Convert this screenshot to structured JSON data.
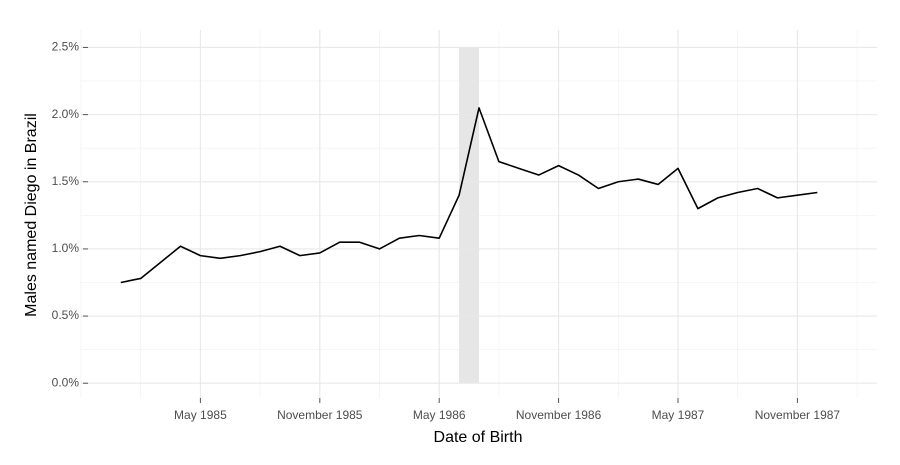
{
  "chart_data": {
    "type": "line",
    "xlabel": "Date of Birth",
    "ylabel": "Males named Diego in Brazil",
    "x": [
      "1985-01",
      "1985-02",
      "1985-03",
      "1985-04",
      "1985-05",
      "1985-06",
      "1985-07",
      "1985-08",
      "1985-09",
      "1985-10",
      "1985-11",
      "1985-12",
      "1986-01",
      "1986-02",
      "1986-03",
      "1986-04",
      "1986-05",
      "1986-06",
      "1986-07",
      "1986-08",
      "1986-09",
      "1986-10",
      "1986-11",
      "1986-12",
      "1987-01",
      "1987-02",
      "1987-03",
      "1987-04",
      "1987-05",
      "1987-06",
      "1987-07",
      "1987-08",
      "1987-09",
      "1987-10",
      "1987-11",
      "1987-12"
    ],
    "series": [
      {
        "color": "#000000",
        "values": [
          0.75,
          0.78,
          0.9,
          1.02,
          0.95,
          0.93,
          0.95,
          0.98,
          1.02,
          0.95,
          0.97,
          1.05,
          1.05,
          1.0,
          1.08,
          1.1,
          1.08,
          1.4,
          2.05,
          1.65,
          1.6,
          1.55,
          1.62,
          1.55,
          1.45,
          1.5,
          1.52,
          1.48,
          1.6,
          1.3,
          1.38,
          1.42,
          1.45,
          1.38,
          1.4,
          1.42
        ]
      }
    ],
    "shade": [
      "1986-06",
      "1986-07"
    ],
    "shade_color": "#e6e6e6",
    "xlim": [
      "1984-11",
      "1988-03"
    ],
    "xticks": [
      {
        "value": "1985-05",
        "label": "May 1985"
      },
      {
        "value": "1985-11",
        "label": "November 1985"
      },
      {
        "value": "1986-05",
        "label": "May 1986"
      },
      {
        "value": "1986-11",
        "label": "November 1986"
      },
      {
        "value": "1987-05",
        "label": "May 1987"
      },
      {
        "value": "1987-11",
        "label": "November 1987"
      }
    ],
    "ylim": [
      -0.11,
      2.63
    ],
    "yticks": [
      {
        "value": 0,
        "label": "0.0%"
      },
      {
        "value": 0.5,
        "label": "0.5%"
      },
      {
        "value": 1,
        "label": "1.0%"
      },
      {
        "value": 1.5,
        "label": "1.5%"
      },
      {
        "value": 2,
        "label": "2.0%"
      },
      {
        "value": 2.5,
        "label": "2.5%"
      }
    ],
    "grid": true
  }
}
